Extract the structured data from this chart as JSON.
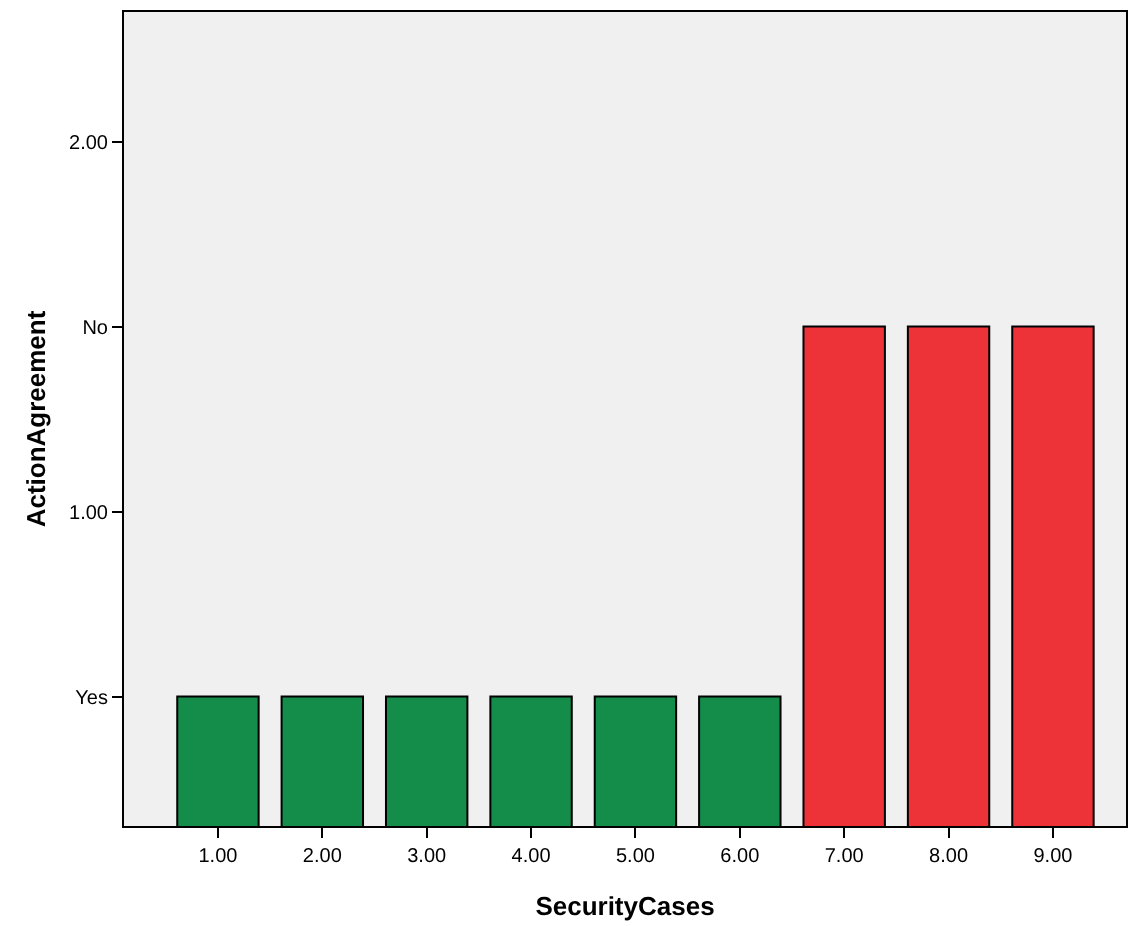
{
  "chart_data": {
    "type": "bar",
    "xlabel": "SecurityCases",
    "ylabel": "ActionAgreement",
    "categories": [
      "1.00",
      "2.00",
      "3.00",
      "4.00",
      "5.00",
      "6.00",
      "7.00",
      "8.00",
      "9.00"
    ],
    "values": [
      0.5,
      0.5,
      0.5,
      0.5,
      0.5,
      0.5,
      1.5,
      1.5,
      1.5
    ],
    "colors": [
      "#148c4a",
      "#148c4a",
      "#148c4a",
      "#148c4a",
      "#148c4a",
      "#148c4a",
      "#ee3338",
      "#ee3338",
      "#ee3338"
    ],
    "ylim": [
      0.15,
      2.35
    ],
    "yticks": [
      {
        "value": 0.5,
        "label": "Yes"
      },
      {
        "value": 1,
        "label": "1.00"
      },
      {
        "value": 1.5,
        "label": "No"
      },
      {
        "value": 2,
        "label": "2.00"
      }
    ],
    "grid": false,
    "legend": false
  }
}
